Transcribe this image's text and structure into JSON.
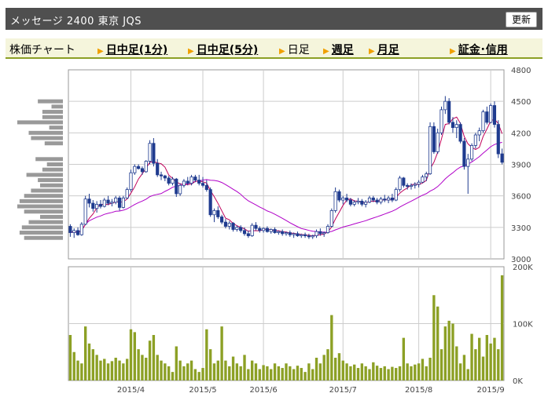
{
  "header": {
    "title": "メッセージ 2400 東京 JQS",
    "refresh_label": "更新"
  },
  "tabs": [
    {
      "label": "株価チャート",
      "link": false,
      "arrow": false
    },
    {
      "label": "日中足(1分)",
      "link": true,
      "arrow": true
    },
    {
      "label": "日中足(5分)",
      "link": true,
      "arrow": true
    },
    {
      "label": "日足",
      "link": false,
      "arrow": true
    },
    {
      "label": "週足",
      "link": true,
      "arrow": true
    },
    {
      "label": "月足",
      "link": true,
      "arrow": true
    },
    {
      "label": "証金･信用",
      "link": true,
      "arrow": true
    }
  ],
  "colors": {
    "up": "#1f3b8f",
    "down": "#1f3b8f",
    "ma_short": "#c0005a",
    "ma_long": "#b000c8",
    "volume": "#8ca025",
    "profile": "#999999",
    "grid": "#cccccc"
  },
  "chart_data": {
    "type": "candlestick",
    "price_axis": {
      "ticks": [
        3000,
        3300,
        3600,
        3900,
        4200,
        4500,
        4800
      ],
      "ylim": [
        3000,
        4800
      ]
    },
    "volume_axis": {
      "ticks": [
        "0K",
        "100K",
        "200K"
      ],
      "values": [
        0,
        100000,
        200000
      ],
      "ylim": [
        0,
        200000
      ]
    },
    "x_tick_labels": [
      "2015/4",
      "2015/5",
      "2015/6",
      "2015/7",
      "2015/8",
      "2015/9"
    ],
    "x_tick_index": [
      16,
      35,
      51,
      72,
      92,
      111
    ],
    "ma_short_window": 5,
    "ma_long_window": 25,
    "ohlc": [
      [
        3310,
        3330,
        3210,
        3250
      ],
      [
        3250,
        3290,
        3200,
        3270
      ],
      [
        3270,
        3300,
        3220,
        3230
      ],
      [
        3230,
        3350,
        3220,
        3330
      ],
      [
        3330,
        3600,
        3320,
        3570
      ],
      [
        3570,
        3620,
        3490,
        3530
      ],
      [
        3530,
        3560,
        3450,
        3480
      ],
      [
        3480,
        3550,
        3440,
        3520
      ],
      [
        3520,
        3560,
        3480,
        3500
      ],
      [
        3500,
        3580,
        3490,
        3560
      ],
      [
        3560,
        3600,
        3510,
        3530
      ],
      [
        3530,
        3570,
        3500,
        3540
      ],
      [
        3540,
        3600,
        3520,
        3580
      ],
      [
        3580,
        3600,
        3460,
        3490
      ],
      [
        3490,
        3600,
        3480,
        3580
      ],
      [
        3580,
        3680,
        3570,
        3660
      ],
      [
        3660,
        3850,
        3640,
        3820
      ],
      [
        3820,
        3900,
        3800,
        3880
      ],
      [
        3880,
        3900,
        3850,
        3860
      ],
      [
        3860,
        3880,
        3800,
        3830
      ],
      [
        3830,
        3940,
        3820,
        3930
      ],
      [
        3930,
        4130,
        3900,
        4100
      ],
      [
        4100,
        4150,
        3880,
        3910
      ],
      [
        3910,
        3950,
        3780,
        3800
      ],
      [
        3800,
        3830,
        3750,
        3790
      ],
      [
        3790,
        3800,
        3740,
        3770
      ],
      [
        3770,
        3790,
        3700,
        3720
      ],
      [
        3720,
        3780,
        3700,
        3760
      ],
      [
        3760,
        3770,
        3590,
        3620
      ],
      [
        3620,
        3720,
        3600,
        3700
      ],
      [
        3700,
        3760,
        3680,
        3740
      ],
      [
        3740,
        3780,
        3700,
        3720
      ],
      [
        3720,
        3800,
        3700,
        3780
      ],
      [
        3780,
        3800,
        3730,
        3750
      ],
      [
        3750,
        3800,
        3700,
        3720
      ],
      [
        3720,
        3780,
        3680,
        3700
      ],
      [
        3700,
        3750,
        3640,
        3660
      ],
      [
        3660,
        3680,
        3400,
        3420
      ],
      [
        3420,
        3480,
        3350,
        3460
      ],
      [
        3460,
        3500,
        3380,
        3400
      ],
      [
        3400,
        3420,
        3330,
        3350
      ],
      [
        3350,
        3380,
        3290,
        3310
      ],
      [
        3310,
        3360,
        3280,
        3340
      ],
      [
        3340,
        3350,
        3260,
        3280
      ],
      [
        3280,
        3320,
        3260,
        3300
      ],
      [
        3300,
        3320,
        3250,
        3270
      ],
      [
        3270,
        3300,
        3220,
        3240
      ],
      [
        3240,
        3270,
        3200,
        3220
      ],
      [
        3220,
        3340,
        3210,
        3320
      ],
      [
        3320,
        3350,
        3270,
        3290
      ],
      [
        3290,
        3310,
        3250,
        3270
      ],
      [
        3270,
        3300,
        3250,
        3290
      ],
      [
        3290,
        3310,
        3250,
        3260
      ],
      [
        3260,
        3290,
        3240,
        3280
      ],
      [
        3280,
        3300,
        3240,
        3250
      ],
      [
        3250,
        3270,
        3230,
        3260
      ],
      [
        3260,
        3280,
        3220,
        3240
      ],
      [
        3240,
        3260,
        3220,
        3250
      ],
      [
        3250,
        3270,
        3210,
        3230
      ],
      [
        3230,
        3250,
        3200,
        3240
      ],
      [
        3240,
        3260,
        3210,
        3220
      ],
      [
        3220,
        3240,
        3200,
        3230
      ],
      [
        3230,
        3250,
        3200,
        3220
      ],
      [
        3220,
        3240,
        3190,
        3210
      ],
      [
        3210,
        3230,
        3190,
        3220
      ],
      [
        3220,
        3280,
        3200,
        3260
      ],
      [
        3260,
        3290,
        3220,
        3240
      ],
      [
        3240,
        3260,
        3210,
        3250
      ],
      [
        3250,
        3330,
        3240,
        3310
      ],
      [
        3310,
        3480,
        3300,
        3460
      ],
      [
        3460,
        3680,
        3440,
        3640
      ],
      [
        3640,
        3660,
        3540,
        3560
      ],
      [
        3560,
        3600,
        3520,
        3580
      ],
      [
        3580,
        3620,
        3540,
        3560
      ],
      [
        3560,
        3580,
        3500,
        3520
      ],
      [
        3520,
        3560,
        3500,
        3540
      ],
      [
        3540,
        3580,
        3520,
        3550
      ],
      [
        3550,
        3570,
        3500,
        3520
      ],
      [
        3520,
        3560,
        3490,
        3540
      ],
      [
        3540,
        3600,
        3530,
        3580
      ],
      [
        3580,
        3600,
        3540,
        3560
      ],
      [
        3560,
        3580,
        3520,
        3540
      ],
      [
        3540,
        3590,
        3520,
        3570
      ],
      [
        3570,
        3610,
        3540,
        3560
      ],
      [
        3560,
        3600,
        3530,
        3580
      ],
      [
        3580,
        3620,
        3540,
        3560
      ],
      [
        3560,
        3680,
        3550,
        3660
      ],
      [
        3660,
        3790,
        3640,
        3770
      ],
      [
        3770,
        3780,
        3680,
        3700
      ],
      [
        3700,
        3720,
        3660,
        3690
      ],
      [
        3690,
        3720,
        3660,
        3700
      ],
      [
        3700,
        3730,
        3670,
        3710
      ],
      [
        3710,
        3750,
        3680,
        3730
      ],
      [
        3730,
        3800,
        3720,
        3780
      ],
      [
        3780,
        3830,
        3740,
        3810
      ],
      [
        3810,
        4300,
        3800,
        4260
      ],
      [
        4260,
        4300,
        4000,
        4020
      ],
      [
        4020,
        4240,
        4000,
        4200
      ],
      [
        4200,
        4450,
        4180,
        4420
      ],
      [
        4420,
        4550,
        4380,
        4500
      ],
      [
        4500,
        4530,
        4280,
        4300
      ],
      [
        4300,
        4350,
        4200,
        4250
      ],
      [
        4250,
        4320,
        4150,
        4280
      ],
      [
        4280,
        4300,
        4100,
        4120
      ],
      [
        4120,
        4150,
        3850,
        3880
      ],
      [
        3880,
        4000,
        3620,
        3950
      ],
      [
        3950,
        4100,
        3930,
        4080
      ],
      [
        4080,
        4200,
        4050,
        4180
      ],
      [
        4180,
        4250,
        4120,
        4220
      ],
      [
        4220,
        4420,
        4200,
        4400
      ],
      [
        4400,
        4450,
        4280,
        4300
      ],
      [
        4300,
        4480,
        4290,
        4460
      ],
      [
        4460,
        4500,
        4250,
        4280
      ],
      [
        4280,
        4320,
        3960,
        4000
      ],
      [
        4000,
        4050,
        3900,
        3920
      ]
    ],
    "volume": [
      80000,
      50000,
      35000,
      30000,
      95000,
      65000,
      55000,
      45000,
      35000,
      38000,
      30000,
      34000,
      40000,
      35000,
      30000,
      38000,
      90000,
      85000,
      55000,
      45000,
      40000,
      70000,
      80000,
      45000,
      35000,
      30000,
      25000,
      15000,
      60000,
      35000,
      25000,
      30000,
      35000,
      20000,
      15000,
      22000,
      90000,
      55000,
      30000,
      35000,
      95000,
      35000,
      25000,
      42000,
      30000,
      25000,
      45000,
      20000,
      35000,
      30000,
      20000,
      27000,
      25000,
      20000,
      30000,
      25000,
      22000,
      30000,
      25000,
      20000,
      26000,
      22000,
      15000,
      30000,
      20000,
      40000,
      30000,
      45000,
      55000,
      115000,
      40000,
      48000,
      35000,
      30000,
      25000,
      28000,
      22000,
      30000,
      25000,
      20000,
      32000,
      26000,
      22000,
      25000,
      20000,
      24000,
      22000,
      25000,
      75000,
      30000,
      25000,
      28000,
      30000,
      38000,
      25000,
      40000,
      150000,
      130000,
      55000,
      95000,
      105000,
      100000,
      60000,
      30000,
      45000,
      20000,
      82000,
      55000,
      75000,
      42000,
      80000,
      65000,
      75000,
      55000,
      185000
    ],
    "price_profile": [
      {
        "price": 4500,
        "vol": 0.55
      },
      {
        "price": 4450,
        "vol": 0.25
      },
      {
        "price": 4400,
        "vol": 0.45
      },
      {
        "price": 4350,
        "vol": 0.45
      },
      {
        "price": 4300,
        "vol": 1.0
      },
      {
        "price": 4250,
        "vol": 0.3
      },
      {
        "price": 4200,
        "vol": 0.75
      },
      {
        "price": 4150,
        "vol": 0.7
      },
      {
        "price": 4100,
        "vol": 0.4
      },
      {
        "price": 3950,
        "vol": 0.6
      },
      {
        "price": 3900,
        "vol": 0.35
      },
      {
        "price": 3850,
        "vol": 0.45
      },
      {
        "price": 3800,
        "vol": 0.8
      },
      {
        "price": 3750,
        "vol": 0.55
      },
      {
        "price": 3700,
        "vol": 0.5
      },
      {
        "price": 3650,
        "vol": 0.7
      },
      {
        "price": 3600,
        "vol": 0.85
      },
      {
        "price": 3550,
        "vol": 0.95
      },
      {
        "price": 3500,
        "vol": 1.0
      },
      {
        "price": 3450,
        "vol": 0.85
      },
      {
        "price": 3400,
        "vol": 0.5
      },
      {
        "price": 3350,
        "vol": 0.75
      },
      {
        "price": 3300,
        "vol": 0.9
      },
      {
        "price": 3250,
        "vol": 0.95
      },
      {
        "price": 3200,
        "vol": 0.85
      }
    ]
  }
}
